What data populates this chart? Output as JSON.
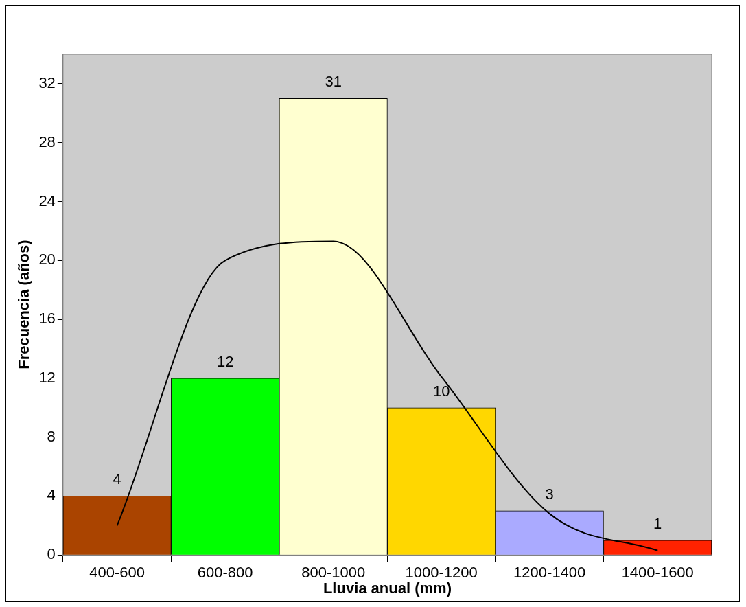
{
  "chart_data": {
    "type": "bar",
    "xlabel": "Lluvia anual (mm)",
    "ylabel": "Frecuencia (años)",
    "categories": [
      "400-600",
      "600-800",
      "800-1000",
      "1000-1200",
      "1200-1400",
      "1400-1600"
    ],
    "ylim": [
      0,
      34
    ],
    "yticks": [
      0,
      4,
      8,
      12,
      16,
      20,
      24,
      28,
      32
    ],
    "grid": false,
    "legend": false,
    "series": [
      {
        "values": [
          4,
          12,
          31,
          10,
          3,
          1
        ],
        "value_labels": [
          "4",
          "12",
          "31",
          "10",
          "3",
          "1"
        ],
        "colors": [
          "#aa4400",
          "#00ff00",
          "#ffffd0",
          "#ffd700",
          "#aaaaff",
          "#ff2200"
        ]
      },
      {
        "type": "line",
        "color": "#000000",
        "marker": "none",
        "values": [
          2.0,
          20.0,
          21.3,
          12.1,
          2.8,
          0.3
        ]
      }
    ]
  }
}
